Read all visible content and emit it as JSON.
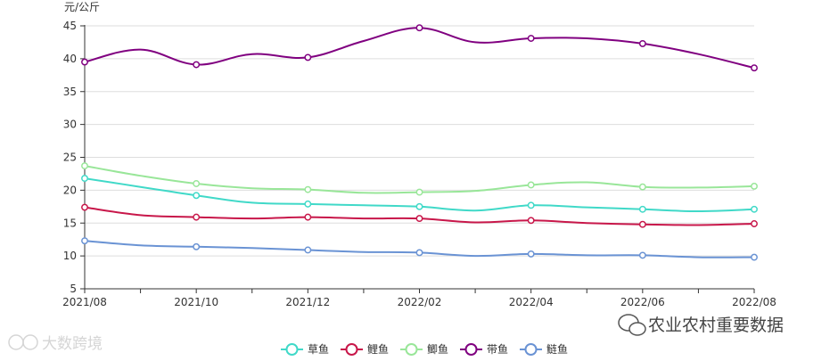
{
  "chart_data": {
    "type": "line",
    "ylabel": "元/公斤",
    "ylim": [
      5,
      45
    ],
    "yticks": [
      5,
      10,
      15,
      20,
      25,
      30,
      35,
      40,
      45
    ],
    "grid": true,
    "legend_position": "bottom-center",
    "x": [
      "2021/08",
      "2021/09",
      "2021/10",
      "2021/11",
      "2021/12",
      "2022/01",
      "2022/02",
      "2022/03",
      "2022/04",
      "2022/05",
      "2022/06",
      "2022/07",
      "2022/08"
    ],
    "xtick_labels": [
      "2021/08",
      "2021/10",
      "2021/12",
      "2022/02",
      "2022/04",
      "2022/06",
      "2022/08"
    ],
    "series": [
      {
        "name": "草鱼",
        "color": "#40d9c8",
        "values": [
          21.8,
          20.5,
          19.2,
          18.1,
          17.9,
          17.7,
          17.5,
          16.9,
          17.7,
          17.4,
          17.1,
          16.8,
          17.1
        ]
      },
      {
        "name": "鲤鱼",
        "color": "#c8174a",
        "values": [
          17.4,
          16.2,
          15.9,
          15.7,
          15.9,
          15.7,
          15.7,
          15.1,
          15.4,
          15.0,
          14.8,
          14.7,
          14.9
        ]
      },
      {
        "name": "鲫鱼",
        "color": "#99e699",
        "values": [
          23.7,
          22.2,
          21.0,
          20.3,
          20.1,
          19.6,
          19.7,
          19.9,
          20.8,
          21.2,
          20.5,
          20.4,
          20.6
        ]
      },
      {
        "name": "带鱼",
        "color": "#800080",
        "values": [
          39.5,
          41.4,
          39.1,
          40.7,
          40.2,
          42.7,
          44.7,
          42.5,
          43.1,
          43.1,
          42.3,
          40.7,
          38.6
        ]
      },
      {
        "name": "鲢鱼",
        "color": "#6a93d4",
        "values": [
          12.3,
          11.6,
          11.4,
          11.2,
          10.9,
          10.6,
          10.5,
          10.0,
          10.3,
          10.1,
          10.1,
          9.8,
          9.8
        ]
      }
    ]
  },
  "watermarks": {
    "left": "大数跨境",
    "right": "农业农村重要数据"
  }
}
